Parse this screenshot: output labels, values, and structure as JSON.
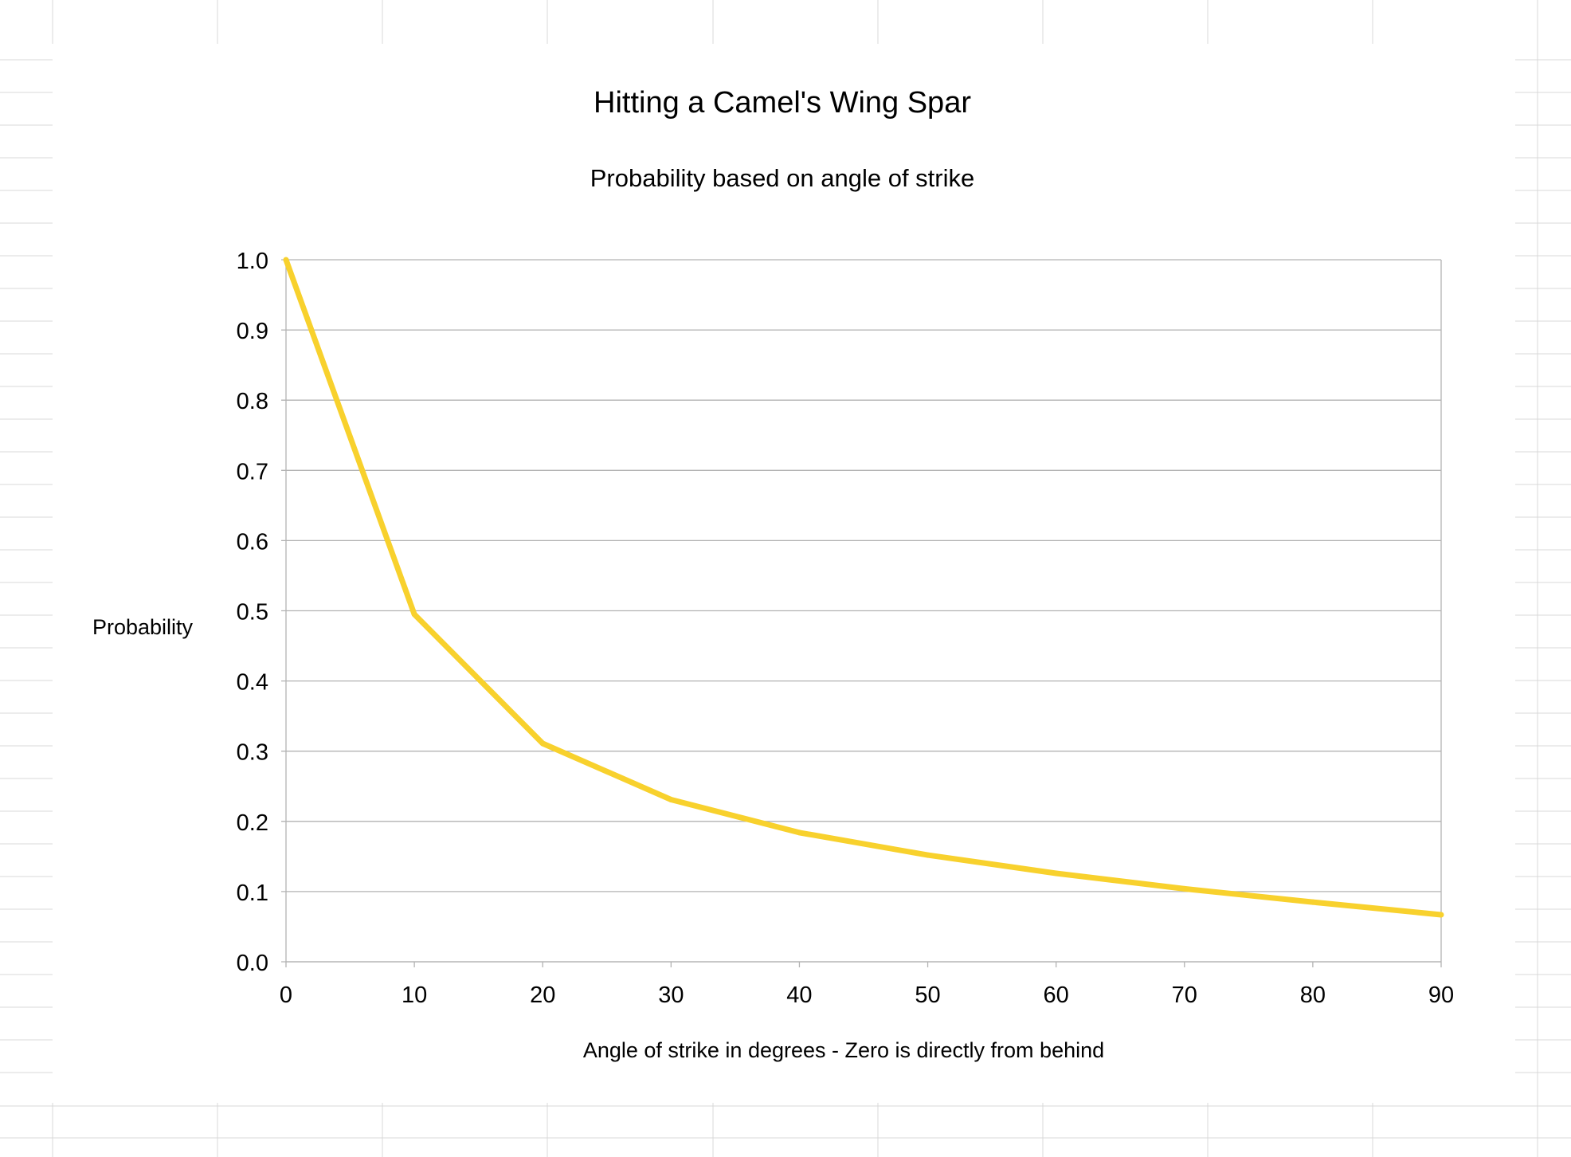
{
  "chart_data": {
    "type": "line",
    "title": "Hitting a Camel's Wing Spar",
    "subtitle": "Probability based on angle of strike",
    "xlabel": "Angle of strike in degrees - Zero is directly from behind",
    "ylabel": "Probability",
    "x": [
      0,
      10,
      20,
      30,
      40,
      50,
      60,
      70,
      80,
      90
    ],
    "series": [
      {
        "values": [
          1.0,
          0.495,
          0.311,
          0.231,
          0.184,
          0.152,
          0.126,
          0.104,
          0.085,
          0.067
        ],
        "color": "#f8d12d"
      }
    ],
    "xlim": [
      0,
      90
    ],
    "ylim": [
      0.0,
      1.0
    ],
    "xticks": [
      "0",
      "10",
      "20",
      "30",
      "40",
      "50",
      "60",
      "70",
      "80",
      "90"
    ],
    "yticks": [
      "0.0",
      "0.1",
      "0.2",
      "0.3",
      "0.4",
      "0.5",
      "0.6",
      "0.7",
      "0.8",
      "0.9",
      "1.0"
    ],
    "grid": true,
    "legend": "none"
  },
  "colors": {
    "line": "#f8d12d",
    "grid": "#b3b3b3",
    "sheet_grid": "#d9d9d9"
  }
}
